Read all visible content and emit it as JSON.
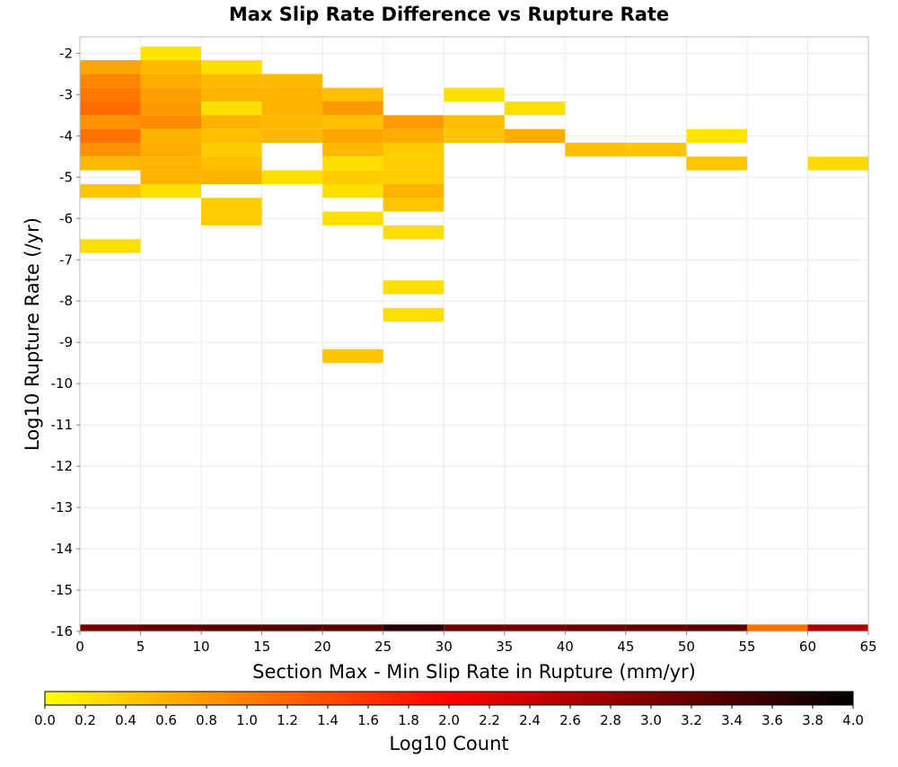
{
  "chart_data": {
    "type": "heatmap",
    "title": "Max Slip Rate Difference vs Rupture Rate",
    "xlabel": "Section Max - Min Slip Rate in Rupture (mm/yr)",
    "ylabel": "Log10 Rupture Rate (/yr)",
    "xlim": [
      0,
      65
    ],
    "ylim": [
      -16,
      -1.6
    ],
    "x_ticks": [
      0,
      5,
      10,
      15,
      20,
      25,
      30,
      35,
      40,
      45,
      50,
      55,
      60,
      65
    ],
    "y_ticks": [
      -2,
      -3,
      -4,
      -5,
      -6,
      -7,
      -8,
      -9,
      -10,
      -11,
      -12,
      -13,
      -14,
      -15,
      -16
    ],
    "x_bin_width": 5,
    "y_bin_height": 0.3333,
    "grid": true,
    "colorbar": {
      "label": "Log10 Count",
      "min": 0.0,
      "max": 4.0,
      "ticks": [
        "0.0",
        "0.2",
        "0.4",
        "0.6",
        "0.8",
        "1.0",
        "1.2",
        "1.4",
        "1.6",
        "1.8",
        "2.0",
        "2.2",
        "2.4",
        "2.6",
        "2.8",
        "3.0",
        "3.2",
        "3.4",
        "3.6",
        "3.8",
        "4.0"
      ],
      "colors": [
        "#ffff00",
        "#ff7f00",
        "#ff0000",
        "#7f0000",
        "#000000"
      ]
    },
    "cells": [
      {
        "x": 0,
        "y": -2.3333,
        "value": 0.7
      },
      {
        "x": 0,
        "y": -2.6667,
        "value": 0.95
      },
      {
        "x": 0,
        "y": -3.0,
        "value": 1.05
      },
      {
        "x": 0,
        "y": -3.3333,
        "value": 1.15
      },
      {
        "x": 0,
        "y": -3.6667,
        "value": 0.85
      },
      {
        "x": 0,
        "y": -4.0,
        "value": 1.1
      },
      {
        "x": 0,
        "y": -4.3333,
        "value": 0.85
      },
      {
        "x": 0,
        "y": -4.6667,
        "value": 0.55
      },
      {
        "x": 0,
        "y": -5.3333,
        "value": 0.45
      },
      {
        "x": 0,
        "y": -6.6667,
        "value": 0.25
      },
      {
        "x": 5,
        "y": -2.0,
        "value": 0.2
      },
      {
        "x": 5,
        "y": -2.3333,
        "value": 0.55
      },
      {
        "x": 5,
        "y": -2.6667,
        "value": 0.65
      },
      {
        "x": 5,
        "y": -3.0,
        "value": 0.75
      },
      {
        "x": 5,
        "y": -3.3333,
        "value": 0.8
      },
      {
        "x": 5,
        "y": -3.6667,
        "value": 0.9
      },
      {
        "x": 5,
        "y": -4.0,
        "value": 0.6
      },
      {
        "x": 5,
        "y": -4.3333,
        "value": 0.65
      },
      {
        "x": 5,
        "y": -4.6667,
        "value": 0.6
      },
      {
        "x": 5,
        "y": -5.0,
        "value": 0.6
      },
      {
        "x": 5,
        "y": -5.3333,
        "value": 0.25
      },
      {
        "x": 10,
        "y": -2.3333,
        "value": 0.25
      },
      {
        "x": 10,
        "y": -2.6667,
        "value": 0.55
      },
      {
        "x": 10,
        "y": -3.0,
        "value": 0.6
      },
      {
        "x": 10,
        "y": -3.3333,
        "value": 0.25
      },
      {
        "x": 10,
        "y": -3.6667,
        "value": 0.6
      },
      {
        "x": 10,
        "y": -4.0,
        "value": 0.5
      },
      {
        "x": 10,
        "y": -4.3333,
        "value": 0.4
      },
      {
        "x": 10,
        "y": -4.6667,
        "value": 0.5
      },
      {
        "x": 10,
        "y": -5.0,
        "value": 0.6
      },
      {
        "x": 10,
        "y": -5.6667,
        "value": 0.4
      },
      {
        "x": 10,
        "y": -6.0,
        "value": 0.4
      },
      {
        "x": 15,
        "y": -2.6667,
        "value": 0.55
      },
      {
        "x": 15,
        "y": -3.0,
        "value": 0.6
      },
      {
        "x": 15,
        "y": -3.3333,
        "value": 0.6
      },
      {
        "x": 15,
        "y": -3.6667,
        "value": 0.55
      },
      {
        "x": 15,
        "y": -4.0,
        "value": 0.55
      },
      {
        "x": 15,
        "y": -5.0,
        "value": 0.25
      },
      {
        "x": 20,
        "y": -3.0,
        "value": 0.5
      },
      {
        "x": 20,
        "y": -3.3333,
        "value": 0.8
      },
      {
        "x": 20,
        "y": -3.6667,
        "value": 0.5
      },
      {
        "x": 20,
        "y": -4.0,
        "value": 0.7
      },
      {
        "x": 20,
        "y": -4.3333,
        "value": 0.55
      },
      {
        "x": 20,
        "y": -4.6667,
        "value": 0.25
      },
      {
        "x": 20,
        "y": -5.0,
        "value": 0.4
      },
      {
        "x": 20,
        "y": -5.3333,
        "value": 0.25
      },
      {
        "x": 20,
        "y": -6.0,
        "value": 0.25
      },
      {
        "x": 20,
        "y": -9.3333,
        "value": 0.45
      },
      {
        "x": 25,
        "y": -3.6667,
        "value": 0.8
      },
      {
        "x": 25,
        "y": -4.0,
        "value": 0.65
      },
      {
        "x": 25,
        "y": -4.3333,
        "value": 0.4
      },
      {
        "x": 25,
        "y": -4.6667,
        "value": 0.4
      },
      {
        "x": 25,
        "y": -5.0,
        "value": 0.4
      },
      {
        "x": 25,
        "y": -5.3333,
        "value": 0.6
      },
      {
        "x": 25,
        "y": -5.6667,
        "value": 0.45
      },
      {
        "x": 25,
        "y": -6.3333,
        "value": 0.25
      },
      {
        "x": 25,
        "y": -7.6667,
        "value": 0.25
      },
      {
        "x": 25,
        "y": -8.3333,
        "value": 0.25
      },
      {
        "x": 30,
        "y": -3.0,
        "value": 0.25
      },
      {
        "x": 30,
        "y": -3.6667,
        "value": 0.5
      },
      {
        "x": 30,
        "y": -4.0,
        "value": 0.45
      },
      {
        "x": 35,
        "y": -3.3333,
        "value": 0.25
      },
      {
        "x": 35,
        "y": -4.0,
        "value": 0.65
      },
      {
        "x": 40,
        "y": -4.3333,
        "value": 0.5
      },
      {
        "x": 45,
        "y": -4.3333,
        "value": 0.45
      },
      {
        "x": 50,
        "y": -4.0,
        "value": 0.2
      },
      {
        "x": 50,
        "y": -4.6667,
        "value": 0.45
      },
      {
        "x": 60,
        "y": -4.6667,
        "value": 0.3
      },
      {
        "x": 0,
        "y": -16.0,
        "value": 3.1
      },
      {
        "x": 5,
        "y": -16.0,
        "value": 3.2
      },
      {
        "x": 10,
        "y": -16.0,
        "value": 3.3
      },
      {
        "x": 15,
        "y": -16.0,
        "value": 3.35
      },
      {
        "x": 20,
        "y": -16.0,
        "value": 3.3
      },
      {
        "x": 25,
        "y": -16.0,
        "value": 3.7
      },
      {
        "x": 30,
        "y": -16.0,
        "value": 3.15
      },
      {
        "x": 35,
        "y": -16.0,
        "value": 3.1
      },
      {
        "x": 40,
        "y": -16.0,
        "value": 3.15
      },
      {
        "x": 45,
        "y": -16.0,
        "value": 3.2
      },
      {
        "x": 50,
        "y": -16.0,
        "value": 3.25
      },
      {
        "x": 55,
        "y": -16.0,
        "value": 1.1
      },
      {
        "x": 60,
        "y": -16.0,
        "value": 2.65
      }
    ]
  }
}
